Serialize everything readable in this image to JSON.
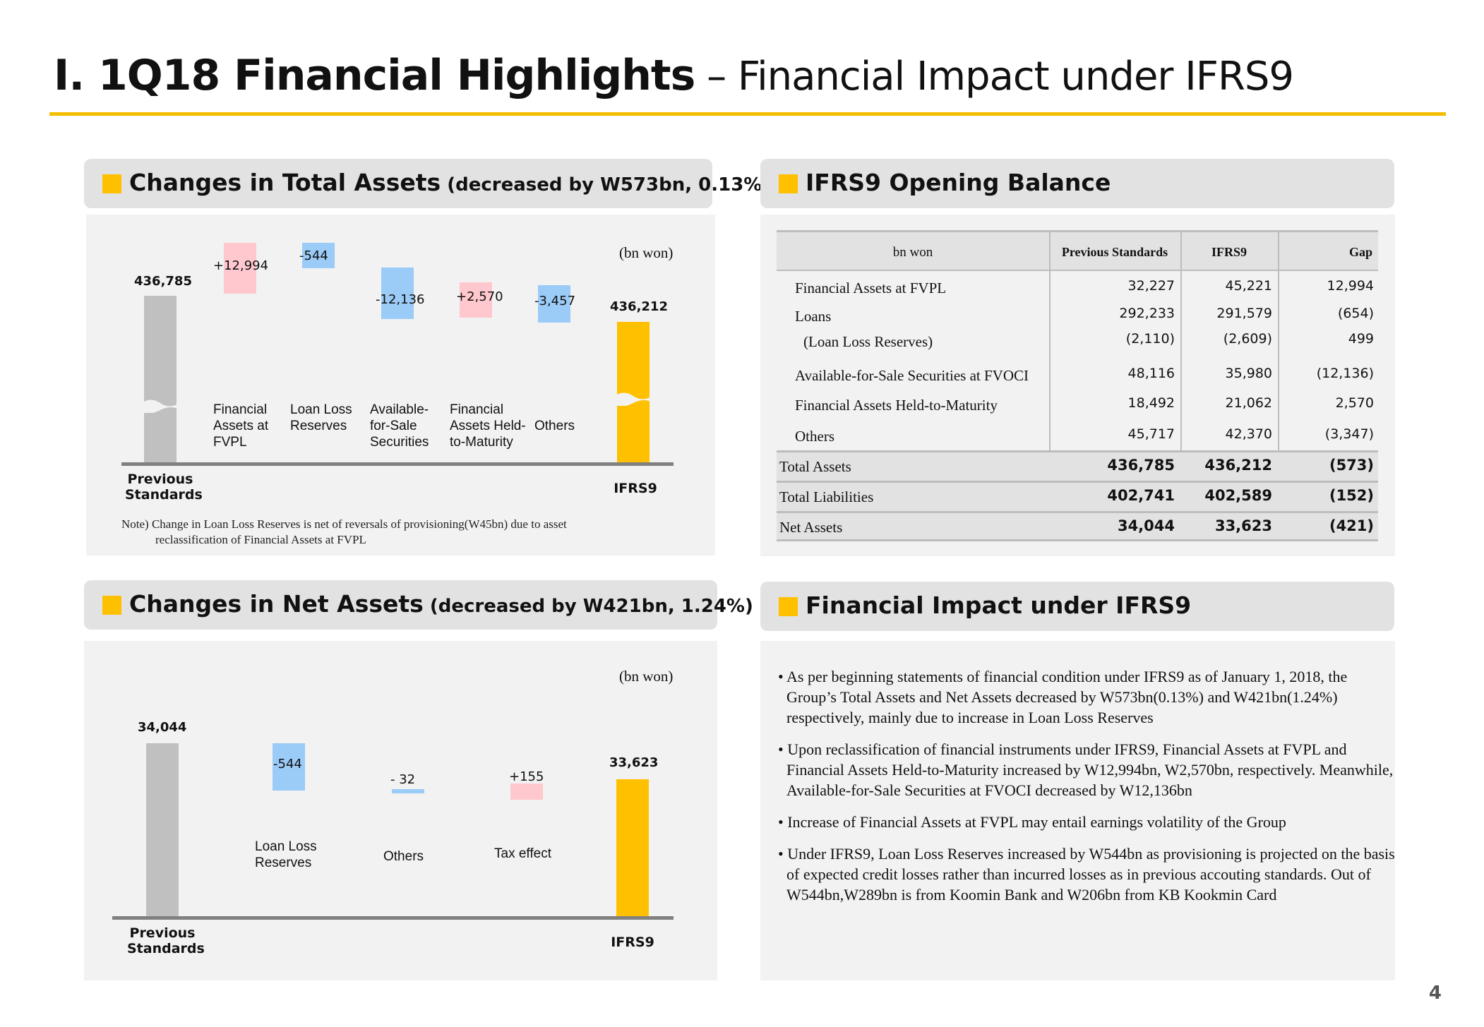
{
  "header": {
    "title_bold": "I. 1Q18 Financial Highlights",
    "title_rest": " – Financial Impact under IFRS9"
  },
  "sections": {
    "total_assets": {
      "title": "Changes in Total Assets",
      "subtitle": " (decreased by W573bn, 0.13%)"
    },
    "opening_balance": {
      "title": "IFRS9 Opening Balance"
    },
    "net_assets": {
      "title": "Changes in Net Assets",
      "subtitle": " (decreased by W421bn, 1.24%)"
    },
    "impact": {
      "title": "Financial Impact under IFRS9"
    }
  },
  "colors": {
    "accent": "#ffc000",
    "gray_bar": "#c0c0c0",
    "increase": "#ffc7ce",
    "decrease": "#9bcbf7"
  },
  "chart_data": [
    {
      "type": "bar",
      "subtype": "waterfall",
      "unit": "(bn won)",
      "categories": [
        "Previous Standards",
        "Financial Assets at FVPL",
        "Loan Loss Reserves",
        "Available-for-Sale Securities",
        "Financial Assets Held-to-Maturity",
        "Others",
        "IFRS9"
      ],
      "values": [
        436785,
        12994,
        -544,
        -12136,
        2570,
        -3457,
        436212
      ],
      "labels": [
        "436,785",
        "+12,994",
        "-544",
        "-12,136",
        "+2,570",
        "-3,457",
        "436,212"
      ],
      "axis_break": true,
      "note_line1": "Note) Change in Loan Loss Reserves is net of reversals of provisioning(W45bn) due to asset",
      "note_line2": "reclassification of Financial Assets at FVPL"
    },
    {
      "type": "bar",
      "subtype": "waterfall",
      "unit": "(bn won)",
      "categories": [
        "Previous Standards",
        "Loan Loss Reserves",
        "Others",
        "Tax effect",
        "IFRS9"
      ],
      "values": [
        34044,
        -544,
        -32,
        155,
        33623
      ],
      "labels": [
        "34,044",
        "-544",
        "- 32",
        "+155",
        "33,623"
      ]
    }
  ],
  "table": {
    "headers": [
      "bn won",
      "Previous Standards",
      "IFRS9",
      "Gap"
    ],
    "rows": [
      {
        "label": "Financial Assets at FVPL",
        "prev": "32,227",
        "ifrs": "45,221",
        "gap": "12,994"
      },
      {
        "label": "Loans",
        "prev": "292,233",
        "ifrs": "291,579",
        "gap": "(654)"
      },
      {
        "label": "(Loan Loss Reserves)",
        "prev": "(2,110)",
        "ifrs": "(2,609)",
        "gap": "499"
      },
      {
        "label": "Available-for-Sale Securities at FVOCI",
        "prev": "48,116",
        "ifrs": "35,980",
        "gap": "(12,136)"
      },
      {
        "label": "Financial Assets Held-to-Maturity",
        "prev": "18,492",
        "ifrs": "21,062",
        "gap": "2,570"
      },
      {
        "label": "Others",
        "prev": "45,717",
        "ifrs": "42,370",
        "gap": "(3,347)"
      }
    ],
    "totals": [
      {
        "label": "Total Assets",
        "prev": "436,785",
        "ifrs": "436,212",
        "gap": "(573)"
      },
      {
        "label": "Total Liabilities",
        "prev": "402,741",
        "ifrs": "402,589",
        "gap": "(152)"
      },
      {
        "label": "Net Assets",
        "prev": "34,044",
        "ifrs": "33,623",
        "gap": "(421)"
      }
    ]
  },
  "bullets": [
    "As per beginning statements of financial condition under IFRS9 as of January 1, 2018, the Group’s Total Assets and Net Assets decreased by W573bn(0.13%) and W421bn(1.24%) respectively, mainly due to increase in Loan Loss Reserves",
    "Upon reclassification of financial instruments under IFRS9, Financial Assets at FVPL and Financial Assets Held-to-Maturity increased by W12,994bn, W2,570bn, respectively. Meanwhile, Available-for-Sale Securities at FVOCI decreased by W12,136bn",
    "Increase of Financial Assets at FVPL may entail earnings volatility of the Group",
    "Under IFRS9, Loan Loss Reserves increased by W544bn as provisioning is projected on the basis of expected credit losses rather than incurred losses as in previous accouting standards.  Out of W544bn,W289bn is from Koomin Bank and W206bn from KB Kookmin Card"
  ],
  "page_number": "4"
}
